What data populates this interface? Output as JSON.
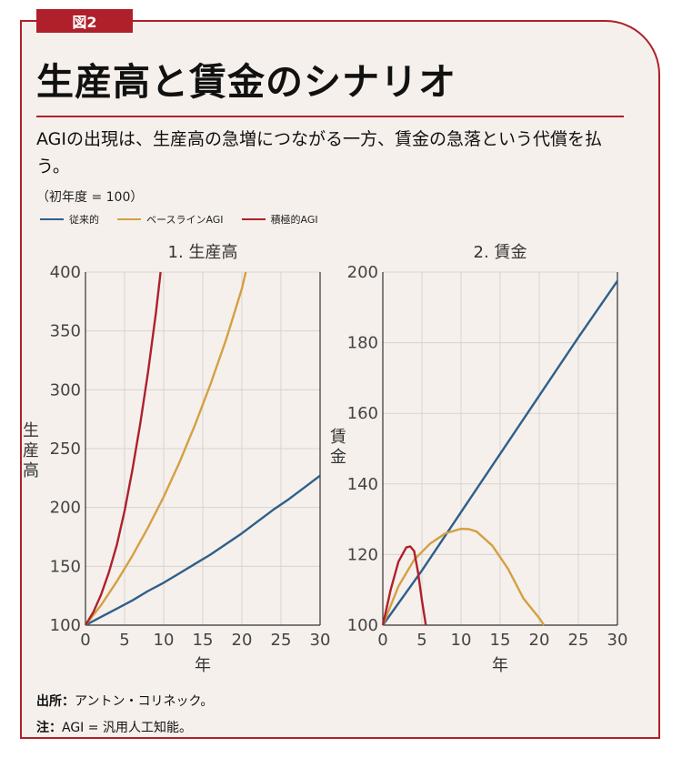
{
  "figure_label": "図2",
  "title": "生産高と賃金のシナリオ",
  "subtitle": "AGIの出現は、生産高の急増につながる一方、賃金の急落という代償を払う。",
  "base_note": "（初年度 = 100）",
  "legend": [
    {
      "label": "従来的",
      "color": "#2f5f8a"
    },
    {
      "label": "ベースラインAGI",
      "color": "#d4a042"
    },
    {
      "label": "積極的AGI",
      "color": "#b0202a"
    }
  ],
  "footer": {
    "source_label": "出所：",
    "source_text": "アントン・コリネック。",
    "note_label": "注：",
    "note_text": "AGI = 汎用人工知能。"
  },
  "chart_data": [
    {
      "type": "line",
      "title": "1. 生産高",
      "xlabel": "年",
      "ylabel": "生産高",
      "xlim": [
        0,
        30
      ],
      "ylim": [
        100,
        400
      ],
      "xticks": [
        0,
        5,
        10,
        15,
        20,
        25,
        30
      ],
      "yticks": [
        100,
        150,
        200,
        250,
        300,
        350,
        400
      ],
      "grid": true,
      "series": [
        {
          "name": "従来的",
          "color": "#2f5f8a",
          "x": [
            0,
            2,
            4,
            6,
            8,
            10,
            12,
            14,
            16,
            18,
            20,
            22,
            24,
            26,
            28,
            30
          ],
          "y": [
            100,
            107,
            114,
            121,
            129,
            136,
            144,
            152,
            160,
            169,
            178,
            188,
            198,
            207,
            217,
            227
          ]
        },
        {
          "name": "ベースラインAGI",
          "color": "#d4a042",
          "x": [
            0,
            2,
            4,
            6,
            8,
            10,
            12,
            14,
            16,
            18,
            20,
            20.5
          ],
          "y": [
            100,
            117,
            137,
            159,
            183,
            209,
            238,
            270,
            305,
            343,
            386,
            400
          ]
        },
        {
          "name": "積極的AGI",
          "color": "#b0202a",
          "x": [
            0,
            1,
            2,
            3,
            4,
            5,
            6,
            7,
            8,
            9,
            9.6
          ],
          "y": [
            100,
            111,
            126,
            145,
            168,
            197,
            232,
            271,
            315,
            365,
            400
          ]
        }
      ]
    },
    {
      "type": "line",
      "title": "2. 賃金",
      "xlabel": "年",
      "ylabel": "賃金",
      "xlim": [
        0,
        30
      ],
      "ylim": [
        100,
        200
      ],
      "xticks": [
        0,
        5,
        10,
        15,
        20,
        25,
        30
      ],
      "yticks": [
        100,
        120,
        140,
        160,
        180,
        200
      ],
      "grid": true,
      "series": [
        {
          "name": "従来的",
          "color": "#2f5f8a",
          "x": [
            0,
            5,
            10,
            15,
            20,
            25,
            30
          ],
          "y": [
            100,
            115.5,
            132,
            148.5,
            165,
            181.5,
            197.5
          ]
        },
        {
          "name": "ベースラインAGI",
          "color": "#d4a042",
          "x": [
            0,
            2,
            4,
            6,
            8,
            10,
            11,
            12,
            14,
            16,
            18,
            20,
            20.6
          ],
          "y": [
            100,
            111,
            118.5,
            123,
            126,
            127.3,
            127.2,
            126.5,
            122.5,
            116,
            107.5,
            102,
            100
          ]
        },
        {
          "name": "積極的AGI",
          "color": "#b0202a",
          "x": [
            0,
            1,
            2,
            3,
            3.5,
            4,
            4.5,
            5,
            5.5
          ],
          "y": [
            100,
            110,
            118,
            122,
            122.3,
            121,
            115,
            107,
            100
          ]
        }
      ]
    }
  ]
}
